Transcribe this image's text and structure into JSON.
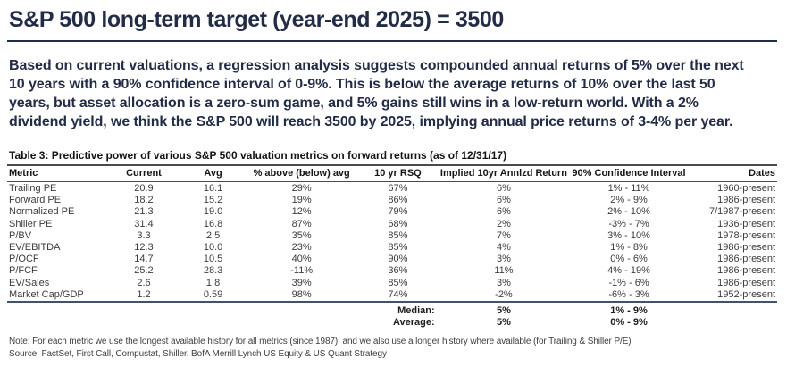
{
  "title": "S&P 500 long-term target (year-end 2025) = 3500",
  "intro": "Based on current valuations, a regression analysis suggests compounded annual returns of 5% over the next 10 years with a 90% confidence interval of 0-9%. This is below the average returns of 10% over the last 50 years, but asset allocation is a zero-sum game, and 5% gains still wins in a low-return world. With a 2% dividend yield, we think the S&P 500 will reach 3500 by 2025, implying annual price returns of 3-4% per year.",
  "table": {
    "caption": "Table 3: Predictive power of various S&P 500 valuation metrics on forward returns (as of 12/31/17)",
    "columns": [
      "Metric",
      "Current",
      "Avg",
      "% above (below) avg",
      "10 yr RSQ",
      "Implied 10yr Annlzd Return",
      "90% Confidence Interval",
      "Dates"
    ],
    "rows": [
      [
        "Trailing PE",
        "20.9",
        "16.1",
        "29%",
        "67%",
        "6%",
        "1% - 11%",
        "1960-present"
      ],
      [
        "Forward PE",
        "18.2",
        "15.2",
        "19%",
        "86%",
        "6%",
        "2% - 9%",
        "1986-present"
      ],
      [
        "Normalized PE",
        "21.3",
        "19.0",
        "12%",
        "79%",
        "6%",
        "2% - 10%",
        "7/1987-present"
      ],
      [
        "Shiller PE",
        "31.4",
        "16.8",
        "87%",
        "68%",
        "2%",
        "-3% - 7%",
        "1936-present"
      ],
      [
        "P/BV",
        "3.3",
        "2.5",
        "35%",
        "85%",
        "7%",
        "3% - 10%",
        "1978-present"
      ],
      [
        "EV/EBITDA",
        "12.3",
        "10.0",
        "23%",
        "85%",
        "4%",
        "1% - 8%",
        "1986-present"
      ],
      [
        "P/OCF",
        "14.7",
        "10.5",
        "40%",
        "90%",
        "3%",
        "0% - 6%",
        "1986-present"
      ],
      [
        "P/FCF",
        "25.2",
        "28.3",
        "-11%",
        "36%",
        "11%",
        "4% - 19%",
        "1986-present"
      ],
      [
        "EV/Sales",
        "2.6",
        "1.8",
        "39%",
        "85%",
        "3%",
        "-1% - 6%",
        "1986-present"
      ],
      [
        "Market Cap/GDP",
        "1.2",
        "0.59",
        "98%",
        "74%",
        "-2%",
        "-6% - 3%",
        "1952-present"
      ]
    ],
    "summary": [
      {
        "label": "Median:",
        "implied": "5%",
        "interval": "1% - 9%"
      },
      {
        "label": "Average:",
        "implied": "5%",
        "interval": "0% - 9%"
      }
    ]
  },
  "note": "Note: For each metric we use the longest available history for all metrics (since 1987), and we also use a longer history where available (for Trailing & Shiller P/E)",
  "source": "Source: FactSet, First Call, Compustat, Shiller, BofA Merrill Lynch US Equity & US Quant Strategy",
  "colors": {
    "heading_navy": "#232c47",
    "table_rule_dark": "#4a4a4a",
    "table_rule_navy": "#44516b",
    "body_text": "#3c3c3c",
    "footnote_text": "#3e3e3e",
    "background": "#ffffff"
  }
}
